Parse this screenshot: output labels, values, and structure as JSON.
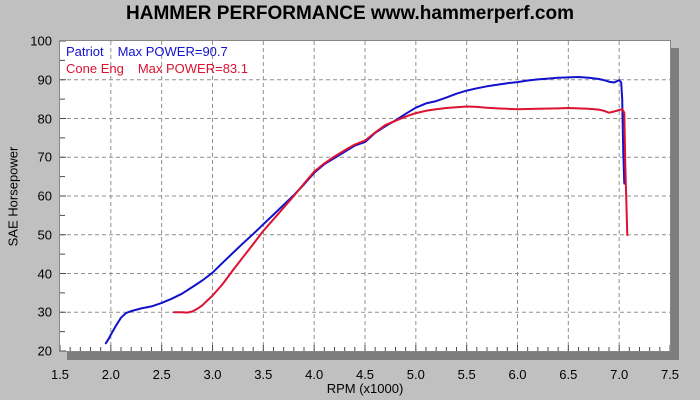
{
  "page": {
    "title": "HAMMER PERFORMANCE www.hammerperf.com"
  },
  "colors": {
    "background": "#c0c0c0",
    "plot_background": "#ffffff",
    "plot_border": "#868686",
    "plot_shadow": "#7d7d7d",
    "grid": "#919191",
    "tick": "#4d4d4d",
    "title_text": "#000000",
    "series_blue": "#1212cd",
    "series_red": "#dc1232"
  },
  "chart_data": {
    "type": "line",
    "title": "HAMMER PERFORMANCE www.hammerperf.com",
    "xlabel": "RPM (x1000)",
    "ylabel": "SAE Horsepower",
    "xlim": [
      1.5,
      7.5
    ],
    "ylim": [
      20,
      100
    ],
    "x_ticks": [
      "1.5",
      "2.0",
      "2.5",
      "3.0",
      "3.5",
      "4.0",
      "4.5",
      "5.0",
      "5.5",
      "6.0",
      "6.5",
      "7.0",
      "7.5"
    ],
    "y_ticks": [
      "20",
      "30",
      "40",
      "50",
      "60",
      "70",
      "80",
      "90",
      "100"
    ],
    "x_minor_step": 0.1,
    "y_minor_step": 5,
    "grid": "dashed gray lines at every major tick",
    "legend_position": "top-left inside plot",
    "series": [
      {
        "name": "Patriot",
        "max_label": "Max POWER=90.7",
        "max_power": 90.7,
        "color": "#1212cd",
        "points": [
          [
            1.95,
            22.0
          ],
          [
            1.98,
            23.2
          ],
          [
            2.0,
            24.2
          ],
          [
            2.05,
            26.5
          ],
          [
            2.1,
            28.6
          ],
          [
            2.15,
            29.8
          ],
          [
            2.2,
            30.3
          ],
          [
            2.3,
            31.0
          ],
          [
            2.4,
            31.5
          ],
          [
            2.5,
            32.4
          ],
          [
            2.6,
            33.5
          ],
          [
            2.7,
            34.8
          ],
          [
            2.8,
            36.5
          ],
          [
            2.9,
            38.2
          ],
          [
            3.0,
            40.2
          ],
          [
            3.1,
            42.8
          ],
          [
            3.2,
            45.3
          ],
          [
            3.3,
            47.8
          ],
          [
            3.4,
            50.2
          ],
          [
            3.5,
            52.7
          ],
          [
            3.6,
            55.2
          ],
          [
            3.7,
            57.7
          ],
          [
            3.8,
            60.2
          ],
          [
            3.9,
            63.0
          ],
          [
            4.0,
            66.0
          ],
          [
            4.1,
            68.2
          ],
          [
            4.2,
            69.8
          ],
          [
            4.3,
            71.4
          ],
          [
            4.4,
            73.0
          ],
          [
            4.5,
            73.9
          ],
          [
            4.6,
            76.3
          ],
          [
            4.7,
            78.0
          ],
          [
            4.8,
            79.5
          ],
          [
            4.9,
            81.2
          ],
          [
            5.0,
            82.8
          ],
          [
            5.1,
            83.9
          ],
          [
            5.2,
            84.5
          ],
          [
            5.3,
            85.4
          ],
          [
            5.4,
            86.4
          ],
          [
            5.5,
            87.2
          ],
          [
            5.6,
            87.8
          ],
          [
            5.7,
            88.3
          ],
          [
            5.8,
            88.7
          ],
          [
            5.9,
            89.1
          ],
          [
            6.0,
            89.4
          ],
          [
            6.1,
            89.8
          ],
          [
            6.2,
            90.1
          ],
          [
            6.3,
            90.3
          ],
          [
            6.4,
            90.5
          ],
          [
            6.5,
            90.6
          ],
          [
            6.6,
            90.7
          ],
          [
            6.7,
            90.5
          ],
          [
            6.8,
            90.2
          ],
          [
            6.85,
            89.9
          ],
          [
            6.9,
            89.5
          ],
          [
            6.95,
            89.3
          ],
          [
            7.0,
            89.9
          ],
          [
            7.02,
            89.3
          ],
          [
            7.03,
            85.0
          ],
          [
            7.04,
            72.0
          ],
          [
            7.05,
            63.2
          ]
        ]
      },
      {
        "name": "Cone Eng",
        "max_label": "Max POWER=83.1",
        "max_power": 83.1,
        "color": "#dc1232",
        "points": [
          [
            2.62,
            30.0
          ],
          [
            2.7,
            30.0
          ],
          [
            2.75,
            29.9
          ],
          [
            2.8,
            30.2
          ],
          [
            2.85,
            30.9
          ],
          [
            2.9,
            31.8
          ],
          [
            3.0,
            34.3
          ],
          [
            3.1,
            37.3
          ],
          [
            3.2,
            40.8
          ],
          [
            3.3,
            44.2
          ],
          [
            3.4,
            47.6
          ],
          [
            3.5,
            51.0
          ],
          [
            3.6,
            54.0
          ],
          [
            3.7,
            57.0
          ],
          [
            3.8,
            60.0
          ],
          [
            3.9,
            63.2
          ],
          [
            4.0,
            66.3
          ],
          [
            4.1,
            68.4
          ],
          [
            4.2,
            70.2
          ],
          [
            4.3,
            71.8
          ],
          [
            4.4,
            73.3
          ],
          [
            4.5,
            74.3
          ],
          [
            4.6,
            76.4
          ],
          [
            4.7,
            78.3
          ],
          [
            4.8,
            79.4
          ],
          [
            4.9,
            80.5
          ],
          [
            5.0,
            81.4
          ],
          [
            5.1,
            82.0
          ],
          [
            5.2,
            82.4
          ],
          [
            5.3,
            82.7
          ],
          [
            5.4,
            82.9
          ],
          [
            5.5,
            83.1
          ],
          [
            5.6,
            83.0
          ],
          [
            5.7,
            82.8
          ],
          [
            5.8,
            82.6
          ],
          [
            5.9,
            82.5
          ],
          [
            6.0,
            82.4
          ],
          [
            6.2,
            82.5
          ],
          [
            6.4,
            82.6
          ],
          [
            6.5,
            82.7
          ],
          [
            6.6,
            82.6
          ],
          [
            6.7,
            82.5
          ],
          [
            6.8,
            82.3
          ],
          [
            6.85,
            82.0
          ],
          [
            6.9,
            81.5
          ],
          [
            6.95,
            81.8
          ],
          [
            7.0,
            82.2
          ],
          [
            7.03,
            82.4
          ],
          [
            7.05,
            81.5
          ],
          [
            7.06,
            68.0
          ],
          [
            7.08,
            49.9
          ]
        ]
      }
    ]
  }
}
